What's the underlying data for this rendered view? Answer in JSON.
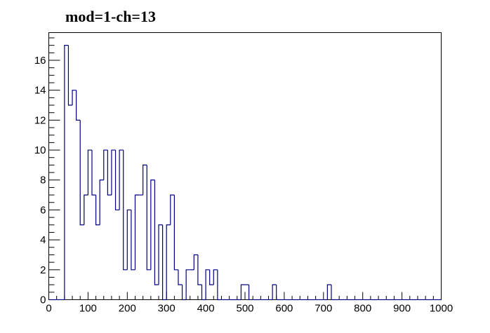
{
  "chart_data": {
    "type": "histogram",
    "title": "mod=1-ch=13",
    "xlabel": "",
    "ylabel": "",
    "xlim": [
      0,
      1000
    ],
    "ylim": [
      0,
      17.85
    ],
    "bin_width": 10,
    "bin_start": 0,
    "line_color": "#000080",
    "grid": false,
    "legend": "none",
    "x_ticks": [
      0,
      100,
      200,
      300,
      400,
      500,
      600,
      700,
      800,
      900,
      1000
    ],
    "y_ticks": [
      0,
      2,
      4,
      6,
      8,
      10,
      12,
      14,
      16
    ],
    "x_tick_labels": [
      "0",
      "100",
      "200",
      "300",
      "400",
      "500",
      "600",
      "700",
      "800",
      "900",
      "1000"
    ],
    "y_tick_labels": [
      "0",
      "2",
      "4",
      "6",
      "8",
      "10",
      "12",
      "14",
      "16"
    ],
    "values": [
      0,
      0,
      0,
      0,
      17,
      13,
      14,
      12,
      5,
      7,
      10,
      7,
      5,
      8,
      10,
      7,
      10,
      6,
      10,
      2,
      6,
      2,
      7,
      7,
      9,
      2,
      8,
      1,
      5,
      0,
      5,
      7,
      2,
      1,
      0,
      2,
      2,
      3,
      1,
      0,
      2,
      1,
      2,
      0,
      0,
      0,
      0,
      0,
      0,
      1,
      1,
      0,
      0,
      0,
      0,
      0,
      0,
      1,
      0,
      0,
      0,
      0,
      0,
      0,
      0,
      0,
      0,
      0,
      0,
      0,
      0,
      1,
      0,
      0,
      0,
      0,
      0,
      0,
      0,
      0,
      0,
      0,
      0,
      0,
      0,
      0,
      0,
      0,
      0,
      0,
      0,
      0,
      0,
      0,
      0,
      0,
      0,
      0,
      0,
      0
    ]
  }
}
